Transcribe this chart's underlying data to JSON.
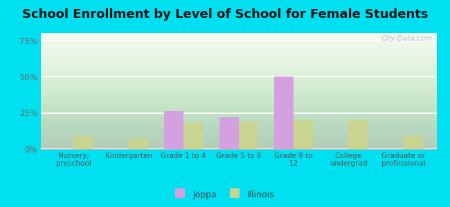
{
  "title": "School Enrollment by Level of School for Female Students",
  "categories": [
    "Nursery,\npreschool",
    "Kindergarten",
    "Grade 1 to 4",
    "Grade 5 to 8",
    "Grade 9 to\n12",
    "College\nundergrad",
    "Graduate or\nprofessional"
  ],
  "joppa": [
    0,
    0,
    26,
    22,
    50,
    0,
    0
  ],
  "illinois": [
    9,
    7,
    18,
    19,
    20,
    20,
    9
  ],
  "joppa_color": "#d4a0e0",
  "illinois_color": "#c8d490",
  "ylim": [
    0,
    80
  ],
  "yticks": [
    0,
    25,
    50,
    75
  ],
  "ytick_labels": [
    "0%",
    "25%",
    "50%",
    "75%"
  ],
  "background_color": "#00e0f0",
  "title_fontsize": 13,
  "bar_width": 0.35,
  "legend_labels": [
    "Joppa",
    "Illinois"
  ]
}
